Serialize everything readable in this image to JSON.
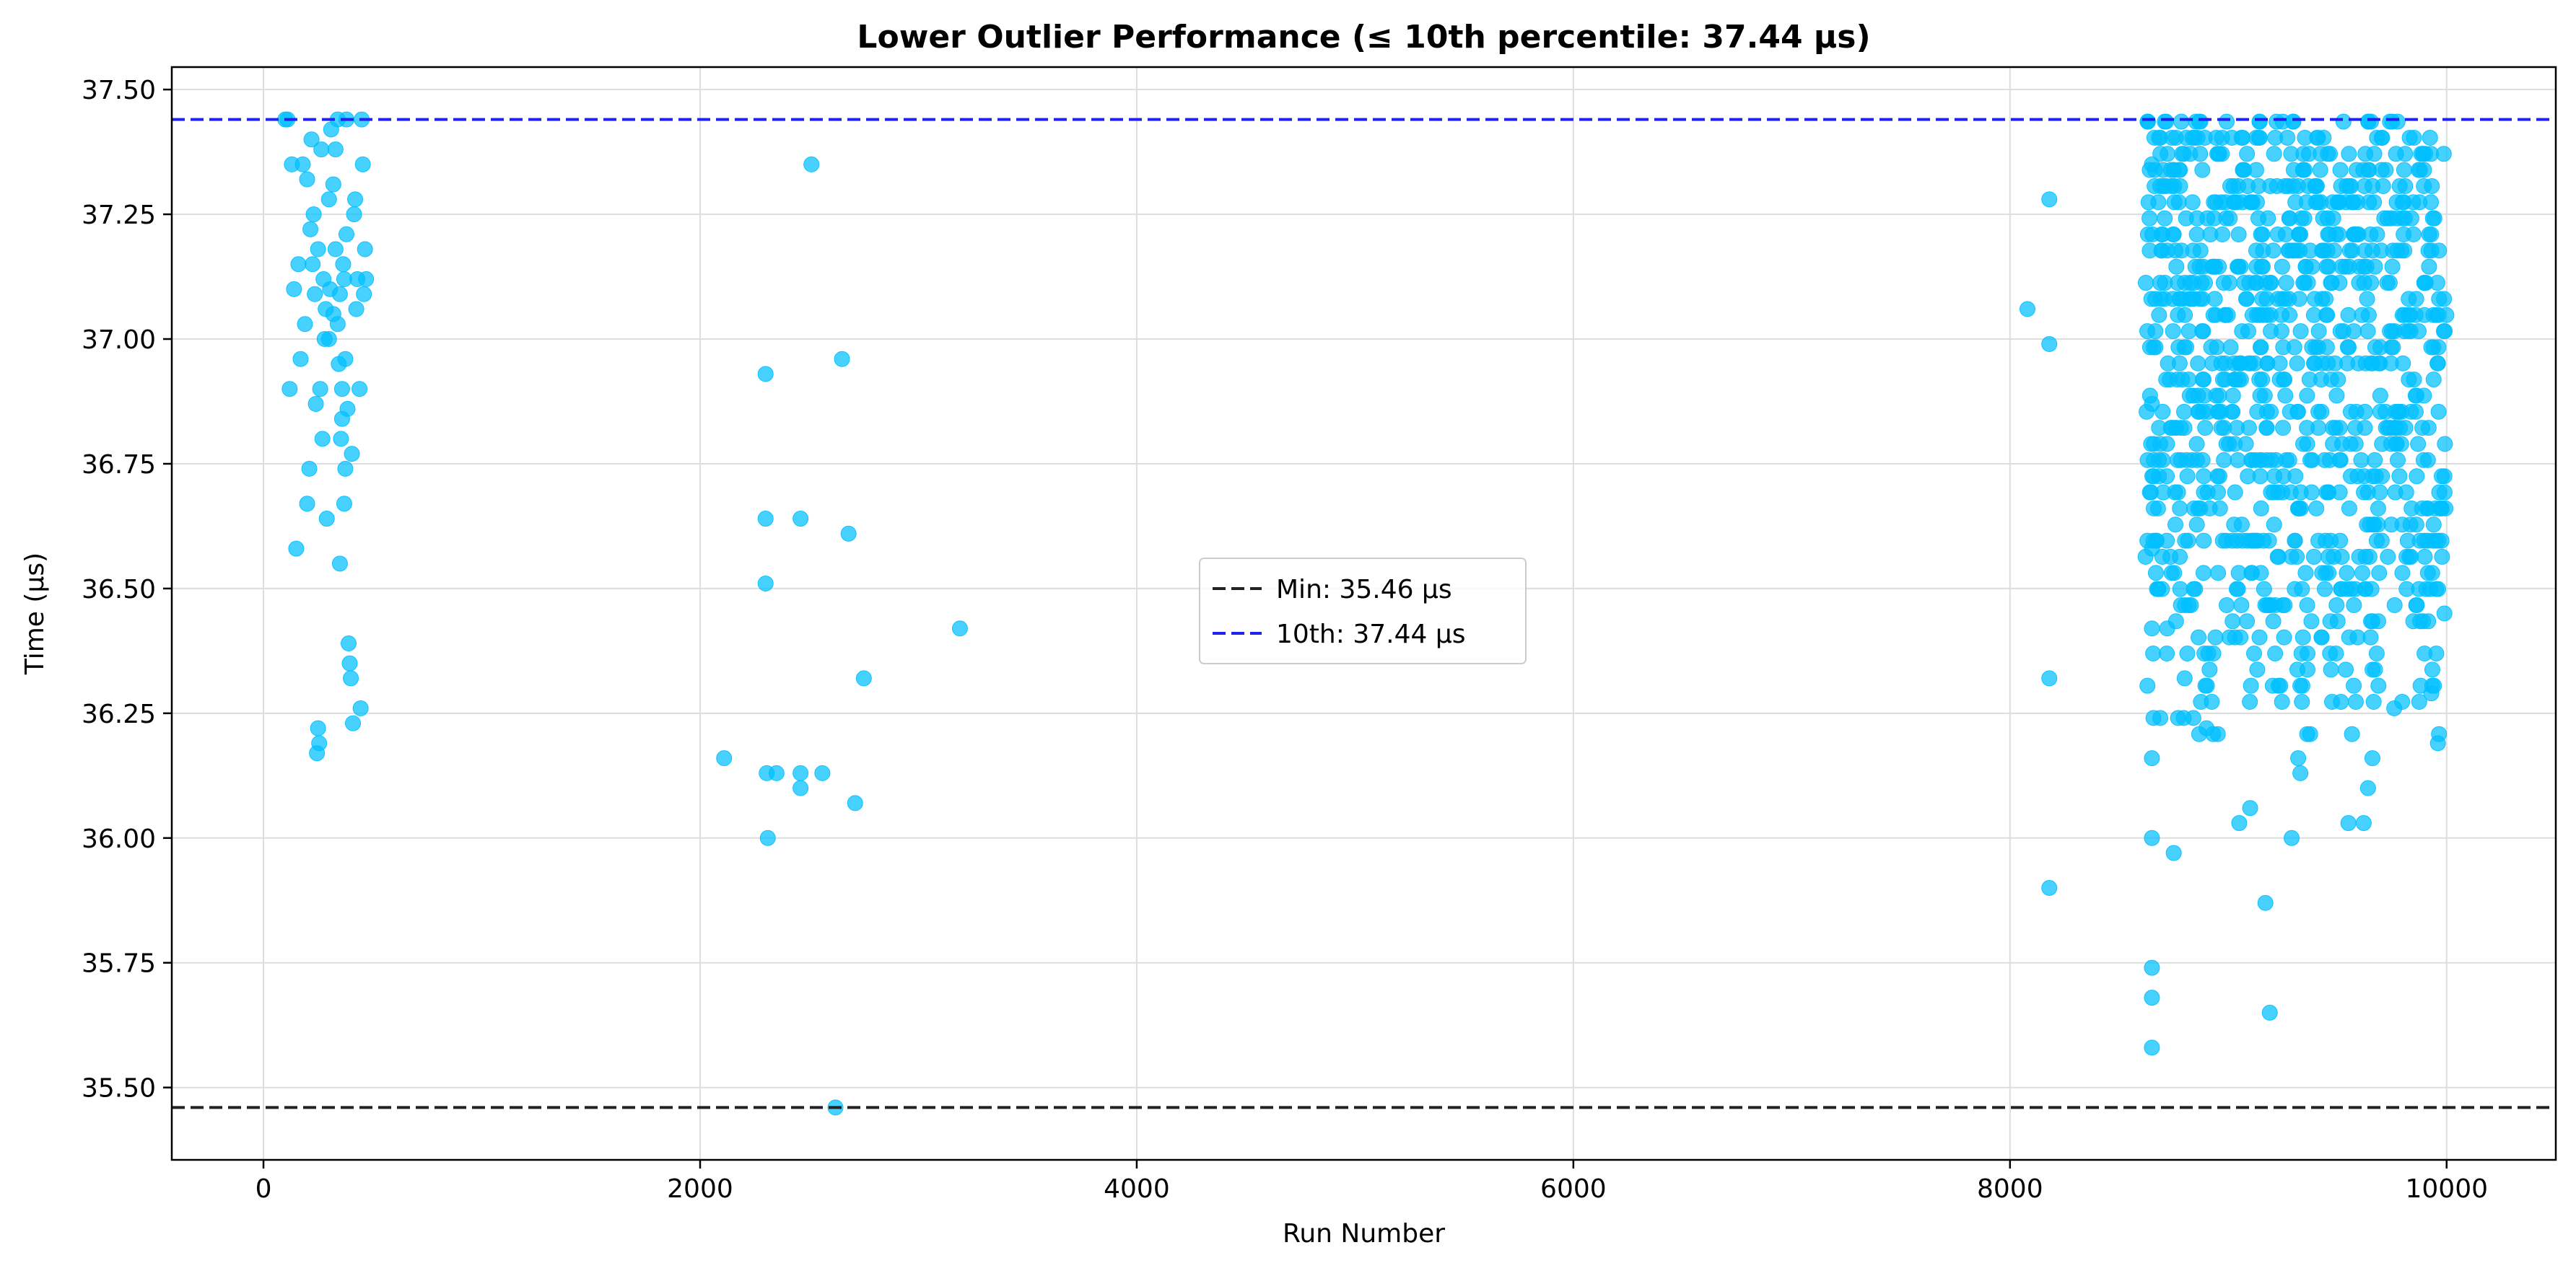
{
  "chart_data": {
    "type": "scatter",
    "title": "Lower Outlier Performance (≤ 10th percentile: 37.44 µs)",
    "xlabel": "Run Number",
    "ylabel": "Time (µs)",
    "xlim": [
      -420,
      10500
    ],
    "ylim": [
      35.355,
      37.545
    ],
    "xticks": [
      0,
      2000,
      4000,
      6000,
      8000,
      10000
    ],
    "xtick_labels": [
      "0",
      "2000",
      "4000",
      "6000",
      "8000",
      "10000"
    ],
    "yticks": [
      35.5,
      35.75,
      36.0,
      36.25,
      36.5,
      36.75,
      37.0,
      37.25,
      37.5
    ],
    "ytick_labels": [
      "35.50",
      "35.75",
      "36.00",
      "36.25",
      "36.50",
      "36.75",
      "37.00",
      "37.25",
      "37.50"
    ],
    "grid": true,
    "marker_color": "#00BFFF",
    "reference_lines": [
      {
        "label": "Min: 35.46 µs",
        "y": 35.46,
        "color": "#222222",
        "style": "dashed"
      },
      {
        "label": "10th: 37.44 µs",
        "y": 37.44,
        "color": "#2222EE",
        "style": "dashed"
      }
    ],
    "legend_position": "center",
    "series": [
      {
        "points": [
          [
            100,
            37.44
          ],
          [
            110,
            37.44
          ],
          [
            120,
            36.9
          ],
          [
            130,
            37.35
          ],
          [
            140,
            37.1
          ],
          [
            150,
            36.58
          ],
          [
            160,
            37.15
          ],
          [
            170,
            36.96
          ],
          [
            180,
            37.35
          ],
          [
            190,
            37.03
          ],
          [
            200,
            36.67
          ],
          [
            210,
            36.74
          ],
          [
            220,
            37.4
          ],
          [
            230,
            37.25
          ],
          [
            240,
            36.87
          ],
          [
            250,
            37.18
          ],
          [
            260,
            36.9
          ],
          [
            270,
            36.8
          ],
          [
            280,
            37.0
          ],
          [
            290,
            36.64
          ],
          [
            200,
            37.32
          ],
          [
            215,
            37.22
          ],
          [
            225,
            37.15
          ],
          [
            235,
            37.09
          ],
          [
            245,
            36.17
          ],
          [
            250,
            36.22
          ],
          [
            255,
            36.19
          ],
          [
            265,
            37.38
          ],
          [
            275,
            37.12
          ],
          [
            285,
            37.06
          ],
          [
            300,
            37.28
          ],
          [
            310,
            37.42
          ],
          [
            320,
            37.31
          ],
          [
            330,
            37.18
          ],
          [
            340,
            37.03
          ],
          [
            350,
            36.55
          ],
          [
            360,
            36.9
          ],
          [
            370,
            36.67
          ],
          [
            375,
            36.74
          ],
          [
            380,
            37.44
          ],
          [
            330,
            37.38
          ],
          [
            340,
            37.44
          ],
          [
            350,
            37.09
          ],
          [
            355,
            36.8
          ],
          [
            360,
            36.84
          ],
          [
            365,
            37.15
          ],
          [
            370,
            37.12
          ],
          [
            375,
            36.96
          ],
          [
            380,
            37.21
          ],
          [
            385,
            36.86
          ],
          [
            390,
            36.39
          ],
          [
            395,
            36.35
          ],
          [
            400,
            36.32
          ],
          [
            405,
            36.77
          ],
          [
            410,
            36.23
          ],
          [
            415,
            37.25
          ],
          [
            420,
            37.28
          ],
          [
            425,
            37.06
          ],
          [
            430,
            37.12
          ],
          [
            440,
            36.9
          ],
          [
            445,
            36.26
          ],
          [
            450,
            37.44
          ],
          [
            455,
            37.35
          ],
          [
            460,
            37.09
          ],
          [
            465,
            37.18
          ],
          [
            470,
            37.12
          ],
          [
            300,
            37.0
          ],
          [
            305,
            37.1
          ],
          [
            320,
            37.05
          ],
          [
            345,
            36.95
          ]
        ]
      },
      {
        "points": [
          [
            2110,
            36.16
          ],
          [
            2300,
            36.93
          ],
          [
            2300,
            36.64
          ],
          [
            2300,
            36.51
          ],
          [
            2305,
            36.13
          ],
          [
            2310,
            36.0
          ],
          [
            2350,
            36.13
          ],
          [
            2460,
            36.64
          ],
          [
            2460,
            36.1
          ],
          [
            2460,
            36.13
          ],
          [
            2510,
            37.35
          ],
          [
            2560,
            36.13
          ],
          [
            2620,
            35.46
          ],
          [
            2650,
            36.96
          ],
          [
            2680,
            36.61
          ],
          [
            2710,
            36.07
          ],
          [
            2750,
            36.32
          ],
          [
            3190,
            36.42
          ]
        ]
      },
      {
        "points": [
          [
            8080,
            37.06
          ],
          [
            8180,
            37.28
          ],
          [
            8180,
            36.99
          ],
          [
            8180,
            36.32
          ],
          [
            8180,
            35.9
          ],
          [
            8650,
            35.58
          ],
          [
            8650,
            35.68
          ],
          [
            8650,
            35.74
          ],
          [
            8650,
            36.0
          ],
          [
            8650,
            36.16
          ],
          [
            8650,
            36.42
          ],
          [
            8650,
            36.58
          ],
          [
            8650,
            36.87
          ],
          [
            8650,
            37.35
          ],
          [
            8720,
            36.42
          ],
          [
            8750,
            35.97
          ],
          [
            8800,
            36.32
          ],
          [
            8900,
            36.22
          ],
          [
            9050,
            36.03
          ],
          [
            9100,
            36.06
          ],
          [
            9170,
            35.87
          ],
          [
            9190,
            35.65
          ],
          [
            9290,
            36.0
          ],
          [
            9320,
            36.16
          ],
          [
            9330,
            36.13
          ],
          [
            9550,
            36.03
          ],
          [
            9620,
            36.03
          ],
          [
            9640,
            36.1
          ],
          [
            9660,
            36.16
          ],
          [
            9760,
            36.26
          ],
          [
            9930,
            36.29
          ],
          [
            9960,
            36.19
          ],
          [
            9990,
            36.45
          ]
        ],
        "fill": {
          "x_range": [
            8620,
            10000
          ],
          "y_range": [
            36.2,
            37.44
          ],
          "count": 950,
          "seed": 7
        }
      }
    ]
  }
}
